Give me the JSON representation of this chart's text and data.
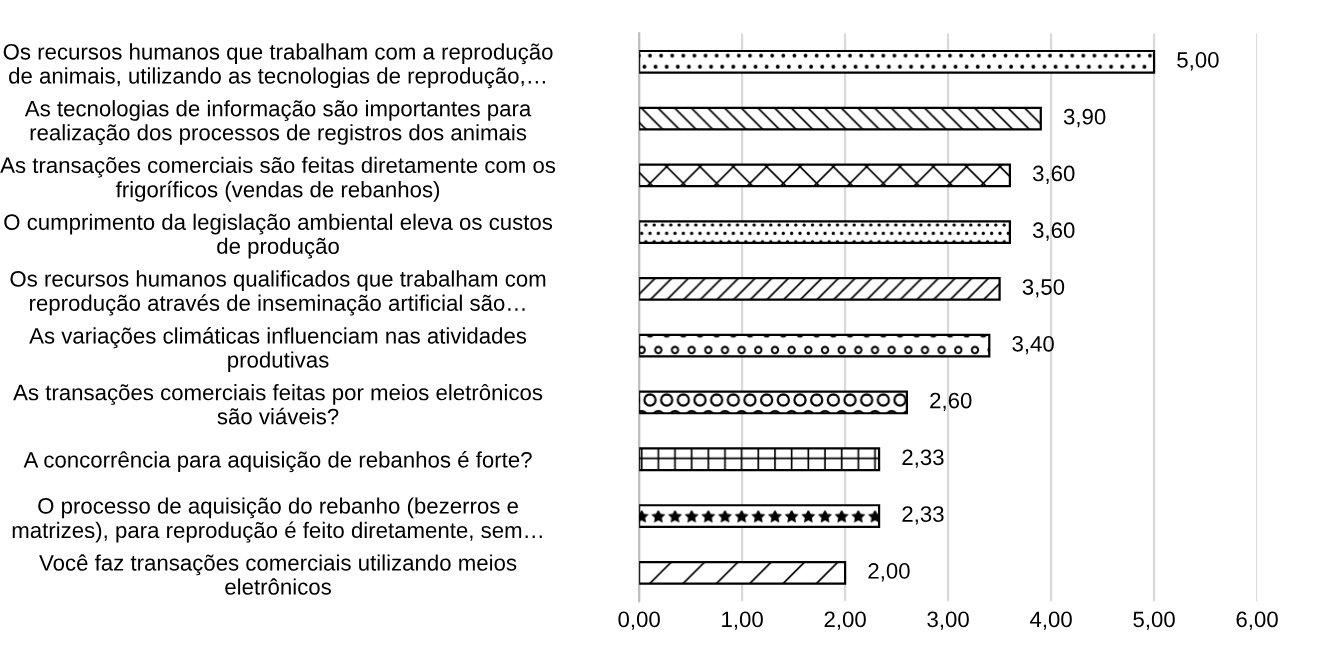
{
  "chart_data": {
    "type": "bar",
    "orientation": "horizontal",
    "categories": [
      "Os recursos humanos que trabalham com a reprodução\nde animais, utilizando as tecnologias de reprodução,…",
      "As tecnologias de informação são importantes para\nrealização dos processos de registros dos animais",
      "As transações comerciais são feitas diretamente com os\nfrigoríficos (vendas de rebanhos)",
      "O cumprimento da legislação ambiental eleva os custos\nde produção",
      "Os recursos humanos qualificados que trabalham com\nreprodução através de inseminação artificial são…",
      "As variações climáticas influenciam nas atividades\nprodutivas",
      "As transações comerciais feitas por meios eletrônicos\nsão viáveis?",
      "A concorrência para aquisição de rebanhos é forte?",
      "O processo de aquisição do rebanho (bezerros e\nmatrizes), para reprodução é feito diretamente, sem…",
      "Você faz transações comerciais utilizando meios\neletrônicos"
    ],
    "values": [
      5.0,
      3.9,
      3.6,
      3.6,
      3.5,
      3.4,
      2.6,
      2.33,
      2.33,
      2.0
    ],
    "value_labels": [
      "5,00",
      "3,90",
      "3,60",
      "3,60",
      "3,50",
      "3,40",
      "2,60",
      "2,33",
      "2,33",
      "2,00"
    ],
    "xlim": [
      0,
      6
    ],
    "xticks": [
      {
        "value": 0,
        "label": "0,00"
      },
      {
        "value": 1,
        "label": "1,00"
      },
      {
        "value": 2,
        "label": "2,00"
      },
      {
        "value": 3,
        "label": "3,00"
      },
      {
        "value": 4,
        "label": "4,00"
      },
      {
        "value": 5,
        "label": "5,00"
      },
      {
        "value": 6,
        "label": "6,00"
      }
    ],
    "grid": "x",
    "legend": false
  }
}
